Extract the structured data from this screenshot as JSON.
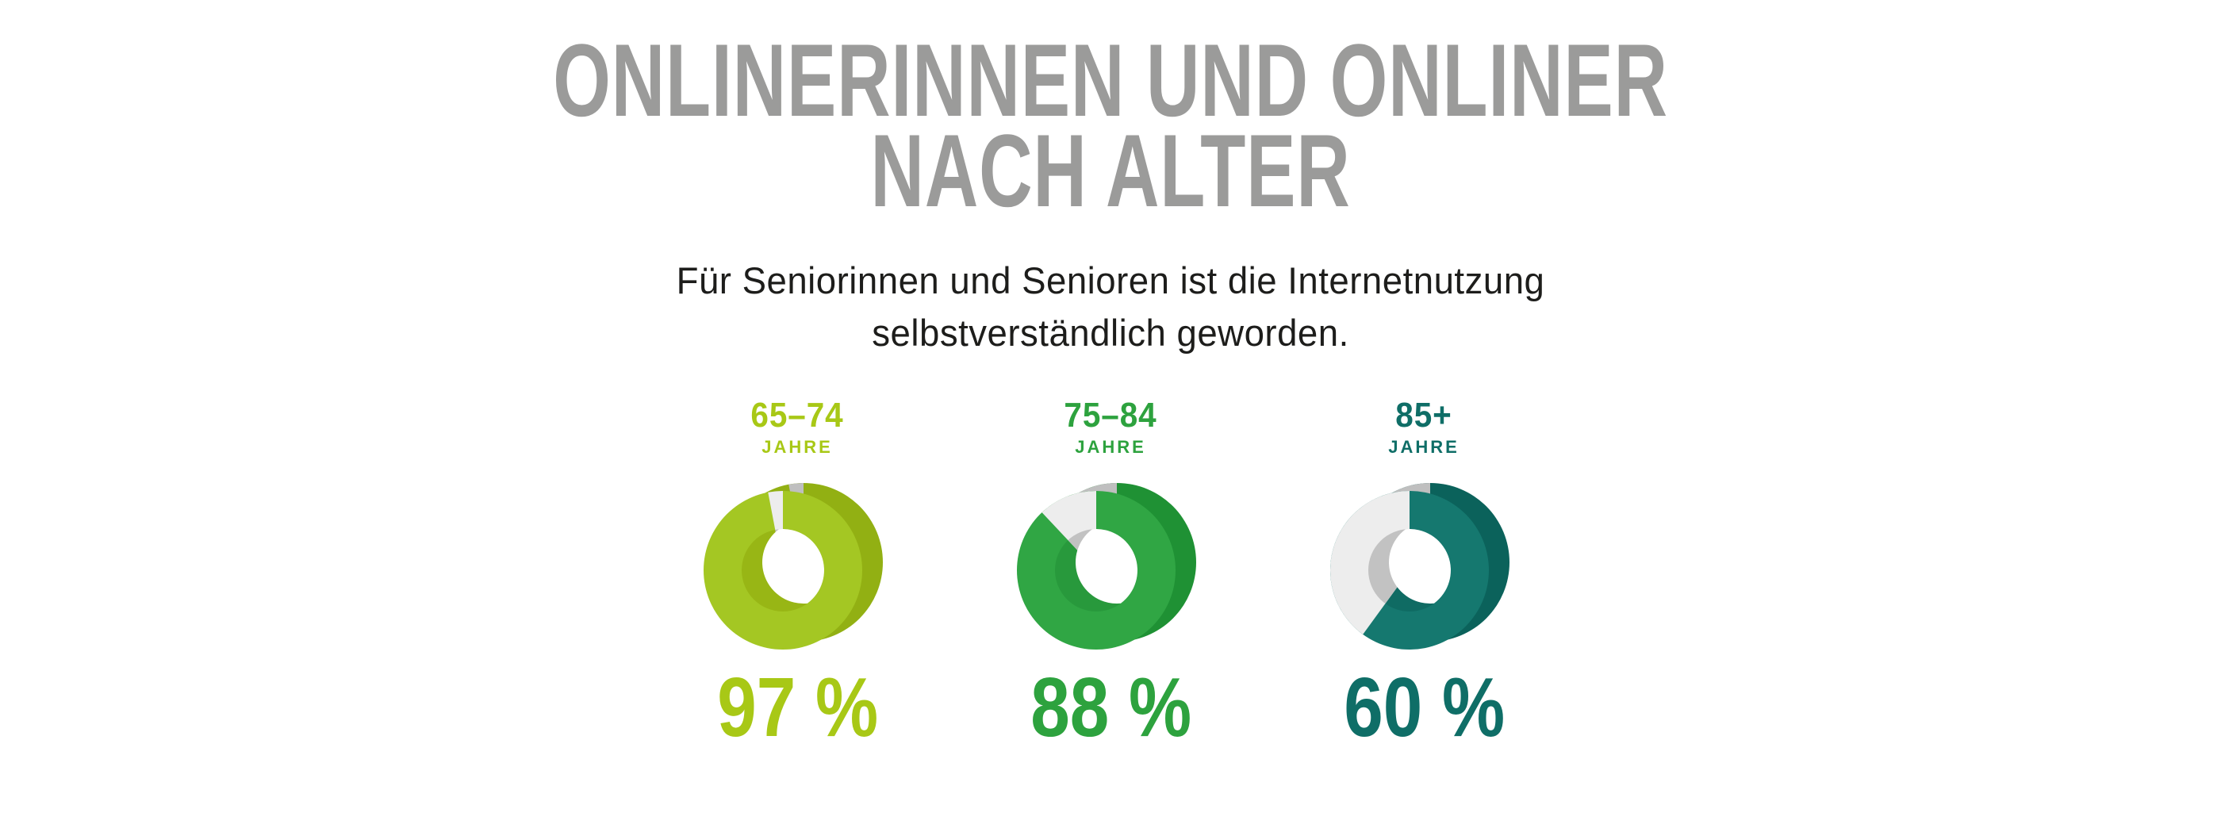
{
  "header": {
    "title_line1": "ONLINERINNEN UND ONLINER",
    "title_line2": "NACH ALTER",
    "title_color": "#9b9b9a",
    "subtitle_line1": "Für Seniorinnen und Senioren ist die Internetnutzung",
    "subtitle_line2": "selbstverständlich geworden.",
    "subtitle_color": "#1d1d1b"
  },
  "chart_data": {
    "type": "pie",
    "variant": "3d-donut-trio",
    "title": "Onlinerinnen und Onliner nach Alter",
    "unit": "%",
    "categories": [
      "65–74 Jahre",
      "75–84 Jahre",
      "85+ Jahre"
    ],
    "values": [
      97,
      88,
      60
    ],
    "series": [
      {
        "age_range": "65–74",
        "age_unit": "JAHRE",
        "value": 97,
        "value_label": "97 %",
        "color_main": "#a4c723",
        "color_side": "#92b013",
        "color_wall": "#98b615",
        "text_color": "#a8c816"
      },
      {
        "age_range": "75–84",
        "age_unit": "JAHRE",
        "value": 88,
        "value_label": "88 %",
        "color_main": "#30a644",
        "color_side": "#1f9134",
        "color_wall": "#28993c",
        "text_color": "#2da23e"
      },
      {
        "age_range": "85+",
        "age_unit": "JAHRE",
        "value": 60,
        "value_label": "60 %",
        "color_main": "#15786f",
        "color_side": "#0b625b",
        "color_wall": "#0f6b63",
        "text_color": "#0f6e67"
      }
    ],
    "remainder_colors": {
      "front": "#ededed",
      "side": "#bfbfbf",
      "wall": "#c2c2c2",
      "hole": "#ffffff"
    },
    "legend_position": "none",
    "grid": false
  }
}
